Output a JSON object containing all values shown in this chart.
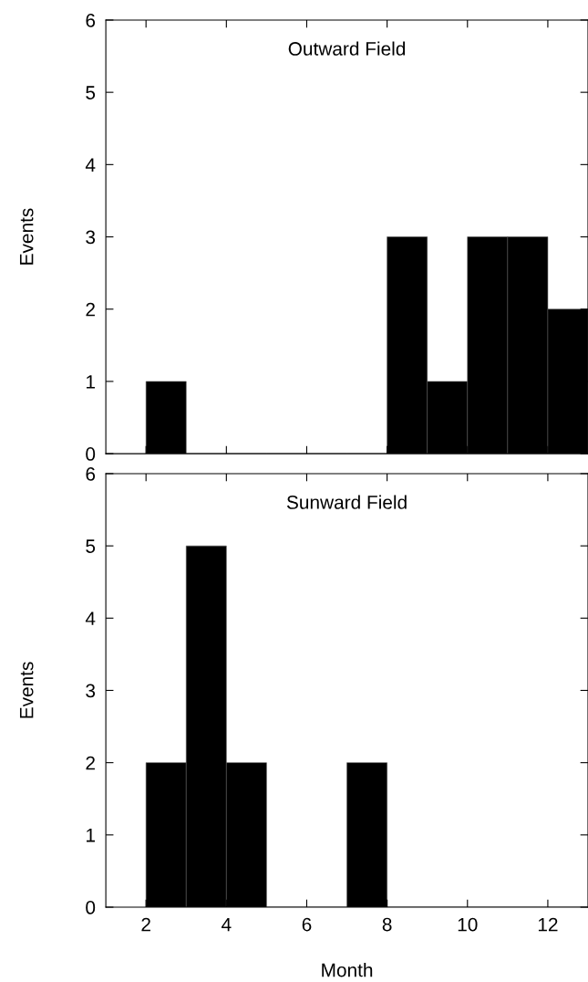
{
  "chart_data": [
    {
      "type": "histogram",
      "title": "Outward Field",
      "ylabel": "Events",
      "color": "#000000",
      "bins": [
        2,
        3,
        4,
        5,
        6,
        7,
        8,
        9,
        10,
        11,
        12,
        13
      ],
      "values": [
        1,
        0,
        0,
        0,
        0,
        0,
        3,
        1,
        3,
        3,
        2
      ],
      "xlim": [
        1,
        13
      ],
      "xticks": [
        2,
        4,
        6,
        8,
        10,
        12
      ],
      "ylim": [
        0,
        6
      ],
      "yticks": [
        0,
        1,
        2,
        3,
        4,
        5,
        6
      ],
      "tick_labels": "y",
      "grid": false,
      "legend": false
    },
    {
      "type": "histogram",
      "title": "Sunward Field",
      "xlabel": "Month",
      "ylabel": "Events",
      "color": "#000000",
      "bins": [
        2,
        3,
        4,
        5,
        6,
        7,
        8,
        9,
        10,
        11,
        12,
        13
      ],
      "values": [
        2,
        5,
        2,
        0,
        0,
        2,
        0,
        0,
        0,
        0,
        0
      ],
      "xlim": [
        1,
        13
      ],
      "xticks": [
        2,
        4,
        6,
        8,
        10,
        12
      ],
      "ylim": [
        0,
        6
      ],
      "yticks": [
        0,
        1,
        2,
        3,
        4,
        5,
        6
      ],
      "grid": false,
      "legend": false
    }
  ]
}
